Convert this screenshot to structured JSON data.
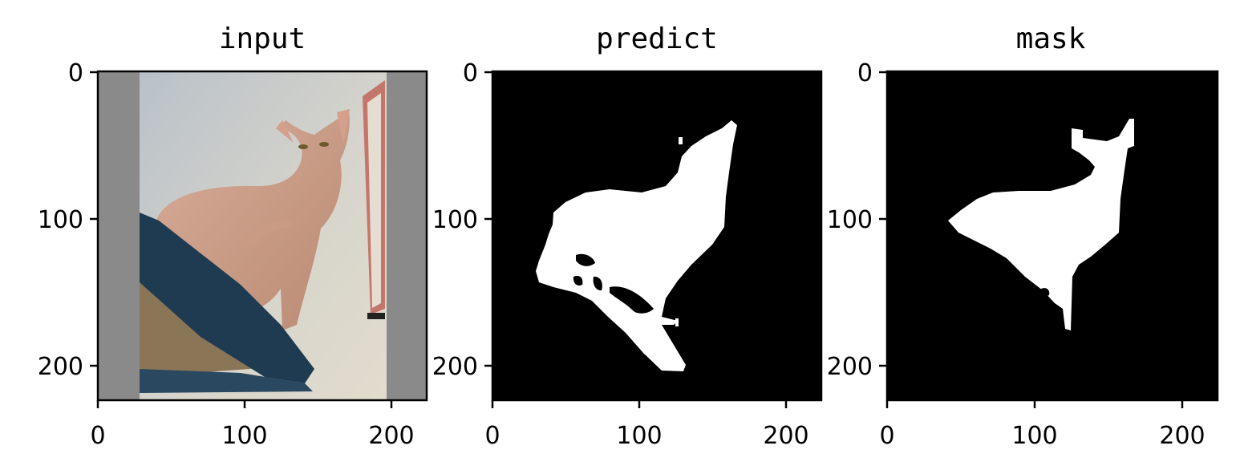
{
  "chart_data": [
    {
      "type": "image",
      "title": "input",
      "xlim": [
        0,
        224
      ],
      "ylim": [
        224,
        0
      ],
      "xticks": [
        0,
        100,
        200
      ],
      "yticks": [
        0,
        100,
        200
      ],
      "content": "photo"
    },
    {
      "type": "image",
      "title": "predict",
      "xlim": [
        0,
        224
      ],
      "ylim": [
        224,
        0
      ],
      "xticks": [
        0,
        100,
        200
      ],
      "yticks": [
        0,
        100,
        200
      ],
      "content": "binary-mask",
      "background": "#000000",
      "foreground": "#ffffff"
    },
    {
      "type": "image",
      "title": "mask",
      "xlim": [
        0,
        224
      ],
      "ylim": [
        224,
        0
      ],
      "xticks": [
        0,
        100,
        200
      ],
      "yticks": [
        0,
        100,
        200
      ],
      "content": "binary-mask",
      "background": "#000000",
      "foreground": "#ffffff"
    }
  ]
}
